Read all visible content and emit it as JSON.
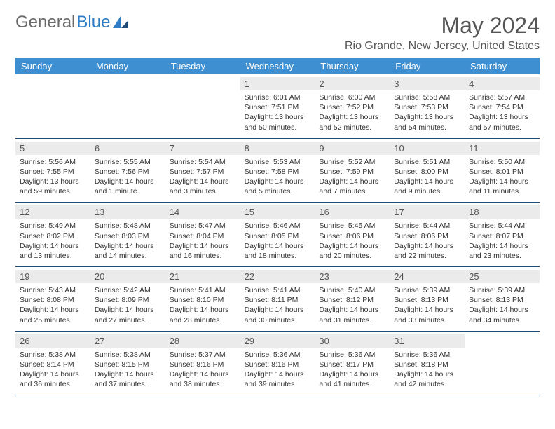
{
  "logo": {
    "text_gray": "General",
    "text_blue": "Blue"
  },
  "title": "May 2024",
  "location": "Rio Grande, New Jersey, United States",
  "colors": {
    "header_bg": "#3d8fd1",
    "header_text": "#ffffff",
    "daynum_bg": "#ebebeb",
    "week_border": "#1e4b7a",
    "body_text": "#333333",
    "title_text": "#555555"
  },
  "typography": {
    "month_title_fontsize": 32,
    "location_fontsize": 16,
    "dayheader_fontsize": 13,
    "daynum_fontsize": 13,
    "dayinfo_fontsize": 10.5
  },
  "day_headers": [
    "Sunday",
    "Monday",
    "Tuesday",
    "Wednesday",
    "Thursday",
    "Friday",
    "Saturday"
  ],
  "weeks": [
    [
      {
        "n": "",
        "sr": "",
        "ss": "",
        "dl": ""
      },
      {
        "n": "",
        "sr": "",
        "ss": "",
        "dl": ""
      },
      {
        "n": "",
        "sr": "",
        "ss": "",
        "dl": ""
      },
      {
        "n": "1",
        "sr": "Sunrise: 6:01 AM",
        "ss": "Sunset: 7:51 PM",
        "dl": "Daylight: 13 hours and 50 minutes."
      },
      {
        "n": "2",
        "sr": "Sunrise: 6:00 AM",
        "ss": "Sunset: 7:52 PM",
        "dl": "Daylight: 13 hours and 52 minutes."
      },
      {
        "n": "3",
        "sr": "Sunrise: 5:58 AM",
        "ss": "Sunset: 7:53 PM",
        "dl": "Daylight: 13 hours and 54 minutes."
      },
      {
        "n": "4",
        "sr": "Sunrise: 5:57 AM",
        "ss": "Sunset: 7:54 PM",
        "dl": "Daylight: 13 hours and 57 minutes."
      }
    ],
    [
      {
        "n": "5",
        "sr": "Sunrise: 5:56 AM",
        "ss": "Sunset: 7:55 PM",
        "dl": "Daylight: 13 hours and 59 minutes."
      },
      {
        "n": "6",
        "sr": "Sunrise: 5:55 AM",
        "ss": "Sunset: 7:56 PM",
        "dl": "Daylight: 14 hours and 1 minute."
      },
      {
        "n": "7",
        "sr": "Sunrise: 5:54 AM",
        "ss": "Sunset: 7:57 PM",
        "dl": "Daylight: 14 hours and 3 minutes."
      },
      {
        "n": "8",
        "sr": "Sunrise: 5:53 AM",
        "ss": "Sunset: 7:58 PM",
        "dl": "Daylight: 14 hours and 5 minutes."
      },
      {
        "n": "9",
        "sr": "Sunrise: 5:52 AM",
        "ss": "Sunset: 7:59 PM",
        "dl": "Daylight: 14 hours and 7 minutes."
      },
      {
        "n": "10",
        "sr": "Sunrise: 5:51 AM",
        "ss": "Sunset: 8:00 PM",
        "dl": "Daylight: 14 hours and 9 minutes."
      },
      {
        "n": "11",
        "sr": "Sunrise: 5:50 AM",
        "ss": "Sunset: 8:01 PM",
        "dl": "Daylight: 14 hours and 11 minutes."
      }
    ],
    [
      {
        "n": "12",
        "sr": "Sunrise: 5:49 AM",
        "ss": "Sunset: 8:02 PM",
        "dl": "Daylight: 14 hours and 13 minutes."
      },
      {
        "n": "13",
        "sr": "Sunrise: 5:48 AM",
        "ss": "Sunset: 8:03 PM",
        "dl": "Daylight: 14 hours and 14 minutes."
      },
      {
        "n": "14",
        "sr": "Sunrise: 5:47 AM",
        "ss": "Sunset: 8:04 PM",
        "dl": "Daylight: 14 hours and 16 minutes."
      },
      {
        "n": "15",
        "sr": "Sunrise: 5:46 AM",
        "ss": "Sunset: 8:05 PM",
        "dl": "Daylight: 14 hours and 18 minutes."
      },
      {
        "n": "16",
        "sr": "Sunrise: 5:45 AM",
        "ss": "Sunset: 8:06 PM",
        "dl": "Daylight: 14 hours and 20 minutes."
      },
      {
        "n": "17",
        "sr": "Sunrise: 5:44 AM",
        "ss": "Sunset: 8:06 PM",
        "dl": "Daylight: 14 hours and 22 minutes."
      },
      {
        "n": "18",
        "sr": "Sunrise: 5:44 AM",
        "ss": "Sunset: 8:07 PM",
        "dl": "Daylight: 14 hours and 23 minutes."
      }
    ],
    [
      {
        "n": "19",
        "sr": "Sunrise: 5:43 AM",
        "ss": "Sunset: 8:08 PM",
        "dl": "Daylight: 14 hours and 25 minutes."
      },
      {
        "n": "20",
        "sr": "Sunrise: 5:42 AM",
        "ss": "Sunset: 8:09 PM",
        "dl": "Daylight: 14 hours and 27 minutes."
      },
      {
        "n": "21",
        "sr": "Sunrise: 5:41 AM",
        "ss": "Sunset: 8:10 PM",
        "dl": "Daylight: 14 hours and 28 minutes."
      },
      {
        "n": "22",
        "sr": "Sunrise: 5:41 AM",
        "ss": "Sunset: 8:11 PM",
        "dl": "Daylight: 14 hours and 30 minutes."
      },
      {
        "n": "23",
        "sr": "Sunrise: 5:40 AM",
        "ss": "Sunset: 8:12 PM",
        "dl": "Daylight: 14 hours and 31 minutes."
      },
      {
        "n": "24",
        "sr": "Sunrise: 5:39 AM",
        "ss": "Sunset: 8:13 PM",
        "dl": "Daylight: 14 hours and 33 minutes."
      },
      {
        "n": "25",
        "sr": "Sunrise: 5:39 AM",
        "ss": "Sunset: 8:13 PM",
        "dl": "Daylight: 14 hours and 34 minutes."
      }
    ],
    [
      {
        "n": "26",
        "sr": "Sunrise: 5:38 AM",
        "ss": "Sunset: 8:14 PM",
        "dl": "Daylight: 14 hours and 36 minutes."
      },
      {
        "n": "27",
        "sr": "Sunrise: 5:38 AM",
        "ss": "Sunset: 8:15 PM",
        "dl": "Daylight: 14 hours and 37 minutes."
      },
      {
        "n": "28",
        "sr": "Sunrise: 5:37 AM",
        "ss": "Sunset: 8:16 PM",
        "dl": "Daylight: 14 hours and 38 minutes."
      },
      {
        "n": "29",
        "sr": "Sunrise: 5:36 AM",
        "ss": "Sunset: 8:16 PM",
        "dl": "Daylight: 14 hours and 39 minutes."
      },
      {
        "n": "30",
        "sr": "Sunrise: 5:36 AM",
        "ss": "Sunset: 8:17 PM",
        "dl": "Daylight: 14 hours and 41 minutes."
      },
      {
        "n": "31",
        "sr": "Sunrise: 5:36 AM",
        "ss": "Sunset: 8:18 PM",
        "dl": "Daylight: 14 hours and 42 minutes."
      },
      {
        "n": "",
        "sr": "",
        "ss": "",
        "dl": ""
      }
    ]
  ]
}
